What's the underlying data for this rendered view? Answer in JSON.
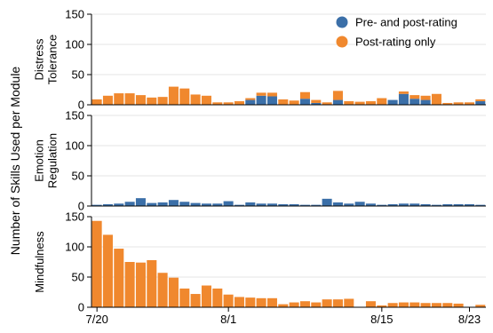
{
  "colors": {
    "pre_post": "#3b6fa8",
    "post_only": "#f0882e"
  },
  "chart_data": {
    "type": "bar",
    "stacked": true,
    "ylabel": "Number of Skills Used per Module",
    "x_tick_labels": [
      "7/20",
      "8/1",
      "8/15",
      "8/23"
    ],
    "x_tick_days": [
      0,
      12,
      26,
      34
    ],
    "day_count": 36,
    "legend": {
      "placement": "top-right",
      "entries": [
        {
          "key": "pre_post",
          "label": "Pre- and post-rating"
        },
        {
          "key": "post_only",
          "label": "Post-rating only"
        }
      ]
    },
    "panels": [
      {
        "name": "Distress\nTolerance",
        "ylim": [
          0,
          150
        ],
        "yticks": [
          0,
          50,
          100,
          150
        ],
        "pre_post": [
          0,
          0,
          0,
          0,
          0,
          0,
          0,
          0,
          0,
          0,
          0,
          0,
          0,
          0,
          8,
          15,
          14,
          0,
          0,
          10,
          3,
          0,
          8,
          0,
          0,
          0,
          0,
          8,
          18,
          10,
          8,
          0,
          0,
          0,
          0,
          6
        ],
        "post_only": [
          9,
          15,
          19,
          19,
          16,
          12,
          13,
          30,
          27,
          17,
          15,
          4,
          4,
          6,
          3,
          5,
          6,
          9,
          7,
          11,
          5,
          4,
          15,
          6,
          5,
          6,
          11,
          0,
          4,
          6,
          7,
          18,
          3,
          4,
          4,
          3
        ]
      },
      {
        "name": "Emotion\nRegulation",
        "ylim": [
          0,
          150
        ],
        "yticks": [
          0,
          50,
          100,
          150
        ],
        "pre_post": [
          2,
          3,
          4,
          7,
          13,
          5,
          6,
          10,
          7,
          5,
          4,
          4,
          8,
          2,
          6,
          4,
          4,
          3,
          3,
          2,
          2,
          12,
          6,
          4,
          7,
          4,
          2,
          3,
          4,
          4,
          3,
          2,
          3,
          3,
          3,
          2
        ],
        "post_only": [
          0,
          0,
          0,
          0,
          0,
          0,
          0,
          0,
          0,
          0,
          0,
          0,
          0,
          0,
          0,
          0,
          0,
          0,
          0,
          0,
          0,
          0,
          0,
          0,
          0,
          0,
          0,
          0,
          0,
          0,
          0,
          0,
          0,
          0,
          0,
          0
        ]
      },
      {
        "name": "Mindfulness",
        "ylim": [
          0,
          150
        ],
        "yticks": [
          0,
          50,
          100,
          150
        ],
        "pre_post": [
          0,
          0,
          0,
          0,
          0,
          0,
          0,
          0,
          0,
          0,
          0,
          0,
          0,
          0,
          0,
          0,
          0,
          0,
          0,
          0,
          0,
          0,
          0,
          0,
          0,
          0,
          0,
          0,
          0,
          0,
          0,
          0,
          0,
          0,
          0,
          0
        ],
        "post_only": [
          143,
          120,
          97,
          75,
          74,
          78,
          57,
          49,
          31,
          22,
          36,
          31,
          21,
          17,
          16,
          15,
          15,
          5,
          8,
          10,
          8,
          13,
          13,
          14,
          0,
          10,
          3,
          7,
          8,
          8,
          7,
          7,
          7,
          6,
          0,
          4
        ]
      }
    ]
  }
}
